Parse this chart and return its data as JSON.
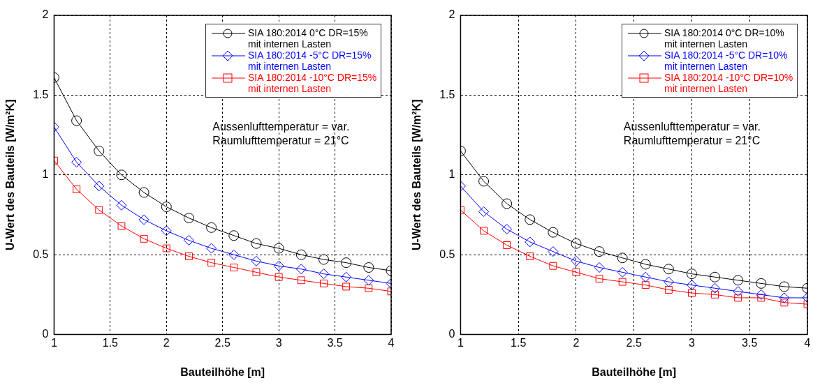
{
  "chart_data": [
    {
      "type": "line",
      "xlabel": "Bauteilhöhe [m]",
      "ylabel": "U-Wert des Bauteils [W/m²K]",
      "x": [
        1,
        1.2,
        1.4,
        1.6,
        1.8,
        2,
        2.2,
        2.4,
        2.6,
        2.8,
        3,
        3.2,
        3.4,
        3.6,
        3.8,
        4
      ],
      "series": [
        {
          "name": "SIA 180:2014    0°C  DR=15%\nmit internen Lasten",
          "color": "#000000",
          "marker": "circle",
          "values": [
            1.61,
            1.34,
            1.15,
            1.0,
            0.89,
            0.8,
            0.73,
            0.67,
            0.62,
            0.57,
            0.54,
            0.5,
            0.47,
            0.45,
            0.42,
            0.4
          ]
        },
        {
          "name": "SIA 180:2014    -5°C  DR=15%\nmit internen Lasten",
          "color": "#0000ff",
          "marker": "diamond",
          "values": [
            1.3,
            1.08,
            0.93,
            0.81,
            0.72,
            0.65,
            0.59,
            0.54,
            0.5,
            0.46,
            0.43,
            0.41,
            0.38,
            0.36,
            0.34,
            0.32
          ]
        },
        {
          "name": "SIA 180:2014  -10°C  DR=15%\nmit internen Lasten",
          "color": "#ff0000",
          "marker": "square",
          "values": [
            1.09,
            0.91,
            0.78,
            0.68,
            0.6,
            0.54,
            0.49,
            0.45,
            0.42,
            0.39,
            0.36,
            0.34,
            0.32,
            0.3,
            0.29,
            0.27
          ]
        }
      ],
      "xlim": [
        1,
        4
      ],
      "xticks": [
        1,
        1.5,
        2,
        2.5,
        3,
        3.5,
        4
      ],
      "ylim": [
        0,
        2
      ],
      "yticks": [
        0,
        0.5,
        1,
        1.5,
        2
      ],
      "grid": true,
      "legend": "top right",
      "annotations": [
        "Aussenlufttemperatur = var.",
        "Raumlufttemperatur = 21°C"
      ]
    },
    {
      "type": "line",
      "xlabel": "Bauteilhöhe [m]",
      "ylabel": "U-Wert des Bauteils [W/m²K]",
      "x": [
        1,
        1.2,
        1.4,
        1.6,
        1.8,
        2,
        2.2,
        2.4,
        2.6,
        2.8,
        3,
        3.2,
        3.4,
        3.6,
        3.8,
        4
      ],
      "series": [
        {
          "name": "SIA 180:2014  0°C DR=10%\nmit internen Lasten",
          "color": "#000000",
          "marker": "circle",
          "values": [
            1.15,
            0.96,
            0.82,
            0.72,
            0.64,
            0.57,
            0.52,
            0.48,
            0.44,
            0.41,
            0.38,
            0.36,
            0.34,
            0.32,
            0.3,
            0.29
          ]
        },
        {
          "name": "SIA 180:2014  -5°C DR=10%\nmit internen Lasten",
          "color": "#0000ff",
          "marker": "diamond",
          "values": [
            0.93,
            0.77,
            0.66,
            0.58,
            0.52,
            0.46,
            0.42,
            0.39,
            0.36,
            0.33,
            0.31,
            0.29,
            0.27,
            0.25,
            0.23,
            0.23
          ]
        },
        {
          "name": "SIA 180:2014 -10°C DR=10%\nmit internen Lasten",
          "color": "#ff0000",
          "marker": "square",
          "values": [
            0.78,
            0.65,
            0.56,
            0.49,
            0.43,
            0.39,
            0.35,
            0.33,
            0.31,
            0.28,
            0.26,
            0.25,
            0.23,
            0.23,
            0.2,
            0.19
          ]
        }
      ],
      "xlim": [
        1,
        4
      ],
      "xticks": [
        1,
        1.5,
        2,
        2.5,
        3,
        3.5,
        4
      ],
      "ylim": [
        0,
        2
      ],
      "yticks": [
        0,
        0.5,
        1,
        1.5,
        2
      ],
      "grid": true,
      "legend": "top right",
      "annotations": [
        "Aussenlufttemperatur = var.",
        "Raumlufttemperatur = 21°C"
      ]
    }
  ]
}
